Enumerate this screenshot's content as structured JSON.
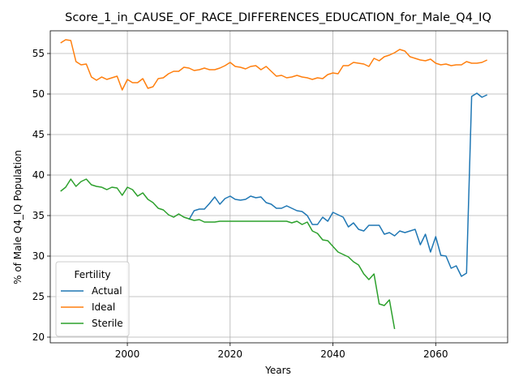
{
  "chart_data": {
    "type": "line",
    "title": "Score_1_in_CAUSE_OF_RACE_DIFFERENCES_EDUCATION_for_Male_Q4_IQ",
    "xlabel": "Years",
    "ylabel": "% of Male Q4_IQ Population",
    "xlim": [
      1985,
      2074
    ],
    "ylim": [
      19.3,
      57.8
    ],
    "xticks": [
      2000,
      2020,
      2040,
      2060
    ],
    "yticks": [
      20,
      25,
      30,
      35,
      40,
      45,
      50,
      55
    ],
    "grid": true,
    "legend": {
      "title": "Fertility",
      "position": "lower left"
    },
    "series": [
      {
        "name": "Actual",
        "color": "#1f77b4",
        "start_year": 2012,
        "values": [
          34.5,
          35.6,
          35.8,
          35.8,
          36.5,
          37.3,
          36.4,
          37.1,
          37.4,
          37.0,
          36.9,
          37.0,
          37.4,
          37.2,
          37.3,
          36.6,
          36.4,
          35.9,
          35.9,
          36.2,
          35.9,
          35.6,
          35.5,
          35.0,
          33.9,
          33.9,
          34.8,
          34.3,
          35.4,
          35.1,
          34.8,
          33.6,
          34.1,
          33.3,
          33.1,
          33.8,
          33.8,
          33.8,
          32.7,
          32.9,
          32.5,
          33.1,
          32.9,
          33.1,
          33.3,
          31.4,
          32.7,
          30.5,
          32.4,
          30.1,
          30.0,
          28.5,
          28.8,
          27.5,
          27.9,
          49.7,
          50.1,
          49.6,
          49.9
        ]
      },
      {
        "name": "Ideal",
        "color": "#ff7f0e",
        "start_year": 1987,
        "values": [
          56.3,
          56.7,
          56.6,
          54.0,
          53.6,
          53.7,
          52.1,
          51.7,
          52.1,
          51.8,
          52.0,
          52.2,
          50.5,
          51.8,
          51.4,
          51.4,
          51.9,
          50.7,
          50.9,
          51.9,
          52.0,
          52.5,
          52.8,
          52.8,
          53.3,
          53.2,
          52.9,
          53.0,
          53.2,
          53.0,
          53.0,
          53.2,
          53.5,
          53.9,
          53.4,
          53.3,
          53.1,
          53.4,
          53.5,
          53.0,
          53.4,
          52.8,
          52.2,
          52.3,
          52.0,
          52.1,
          52.3,
          52.1,
          52.0,
          51.8,
          52.0,
          51.9,
          52.4,
          52.6,
          52.5,
          53.5,
          53.5,
          53.9,
          53.8,
          53.7,
          53.4,
          54.4,
          54.1,
          54.6,
          54.8,
          55.1,
          55.5,
          55.3,
          54.6,
          54.4,
          54.2,
          54.1,
          54.3,
          53.8,
          53.6,
          53.7,
          53.5,
          53.6,
          53.6,
          54.0,
          53.8,
          53.8,
          53.9,
          54.2
        ]
      },
      {
        "name": "Sterile",
        "color": "#2ca02c",
        "start_year": 1987,
        "values": [
          38.0,
          38.5,
          39.5,
          38.6,
          39.2,
          39.5,
          38.8,
          38.6,
          38.5,
          38.2,
          38.5,
          38.4,
          37.5,
          38.5,
          38.2,
          37.4,
          37.8,
          37.0,
          36.6,
          35.9,
          35.7,
          35.1,
          34.8,
          35.2,
          34.8,
          34.6,
          34.4,
          34.5,
          34.2,
          34.2,
          34.2,
          34.3,
          34.3,
          34.3,
          34.3,
          34.3,
          34.3,
          34.3,
          34.3,
          34.3,
          34.3,
          34.3,
          34.3,
          34.3,
          34.3,
          34.1,
          34.3,
          33.9,
          34.2,
          33.1,
          32.8,
          32.0,
          31.9,
          31.2,
          30.5,
          30.2,
          29.9,
          29.3,
          28.9,
          27.8,
          27.1,
          27.8,
          24.1,
          23.9,
          24.6,
          21.0
        ]
      }
    ]
  }
}
